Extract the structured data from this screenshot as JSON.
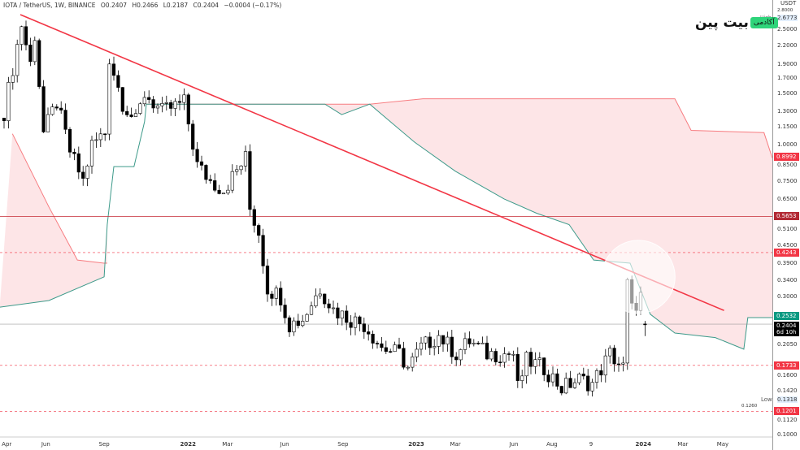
{
  "header": {
    "symbol": "IOTA / TetherUS, 1W, BINANCE",
    "open": "O0.2407",
    "high": "H0.2466",
    "low": "L0.2187",
    "close": "C0.2404",
    "change": "−0.0004 (−0.17%)"
  },
  "logo": {
    "brand": "بیت پین",
    "tag": "آکادمی"
  },
  "axis": {
    "unit": "USDT",
    "y_ticks": [
      "2.5000",
      "2.2000",
      "1.9000",
      "1.7000",
      "1.5000",
      "1.3000",
      "1.1500",
      "1.0000",
      "0.8500",
      "0.7500",
      "0.6500",
      "0.5100",
      "0.4500",
      "0.3900",
      "0.3400",
      "0.3000",
      "0.2050",
      "0.1600",
      "0.1420",
      "0.1120",
      "0.1000"
    ],
    "x_ticks": [
      {
        "label": "Apr",
        "week": 0.6,
        "bold": false
      },
      {
        "label": "Jun",
        "week": 9.5,
        "bold": false
      },
      {
        "label": "Sep",
        "week": 22.8,
        "bold": false
      },
      {
        "label": "2022",
        "week": 41.9,
        "bold": true
      },
      {
        "label": "Mar",
        "week": 50.9,
        "bold": false
      },
      {
        "label": "Jun",
        "week": 63.9,
        "bold": false
      },
      {
        "label": "Sep",
        "week": 77.2,
        "bold": false
      },
      {
        "label": "2023",
        "week": 93.9,
        "bold": true
      },
      {
        "label": "Mar",
        "week": 102.8,
        "bold": false
      },
      {
        "label": "Jun",
        "week": 116.1,
        "bold": false
      },
      {
        "label": "Aug",
        "week": 124.8,
        "bold": false
      },
      {
        "label": "9",
        "week": 133.7,
        "bold": false
      },
      {
        "label": "2024",
        "week": 145.6,
        "bold": true
      },
      {
        "label": "Mar",
        "week": 154.6,
        "bold": false
      },
      {
        "label": "May",
        "week": 163.7,
        "bold": false
      }
    ],
    "high_label": "High",
    "high_value": "2.6773",
    "top_value": "2.8000",
    "low_label": "Low",
    "low_value": "0.1318",
    "low_sub": "0.1260"
  },
  "badges": {
    "cloud_upper": {
      "value": "0.8992",
      "color": "#f23645"
    },
    "level_1": {
      "value": "0.5653",
      "color": "#b22833"
    },
    "level_2": {
      "value": "0.4243",
      "color": "#f23645"
    },
    "cloud_lower": {
      "value": "0.2532",
      "color": "#089981"
    },
    "last_price": {
      "value": "0.2404",
      "countdown": "6d 10h",
      "color": "#000000"
    },
    "level_3": {
      "value": "0.1733",
      "color": "#f23645"
    },
    "level_4": {
      "value": "0.1201",
      "color": "#f23645"
    }
  },
  "chart_data": {
    "type": "candlestick",
    "title": "IOTA / TetherUS, 1W, BINANCE",
    "scale": "log",
    "ylim": [
      0.1,
      2.8
    ],
    "close_keypoints": [
      [
        0,
        1.3
      ],
      [
        3,
        2.2
      ],
      [
        4,
        2.6
      ],
      [
        6,
        1.9
      ],
      [
        7,
        2.4
      ],
      [
        9,
        1.1
      ],
      [
        12,
        1.4
      ],
      [
        15,
        0.95
      ],
      [
        18,
        0.75
      ],
      [
        20,
        1.0
      ],
      [
        23,
        1.1
      ],
      [
        24,
        2.0
      ],
      [
        27,
        1.4
      ],
      [
        30,
        1.2
      ],
      [
        32,
        1.5
      ],
      [
        36,
        1.3
      ],
      [
        41,
        1.4
      ],
      [
        44,
        0.85
      ],
      [
        47,
        0.75
      ],
      [
        50,
        0.7
      ],
      [
        55,
        0.9
      ],
      [
        56,
        0.6
      ],
      [
        58,
        0.5
      ],
      [
        60,
        0.32
      ],
      [
        63,
        0.3
      ],
      [
        65,
        0.24
      ],
      [
        68,
        0.25
      ],
      [
        72,
        0.32
      ],
      [
        75,
        0.27
      ],
      [
        79,
        0.25
      ],
      [
        82,
        0.24
      ],
      [
        86,
        0.2
      ],
      [
        90,
        0.19
      ],
      [
        92,
        0.17
      ],
      [
        95,
        0.2
      ],
      [
        99,
        0.22
      ],
      [
        103,
        0.19
      ],
      [
        106,
        0.21
      ],
      [
        110,
        0.19
      ],
      [
        116,
        0.19
      ],
      [
        117,
        0.145
      ],
      [
        119,
        0.18
      ],
      [
        123,
        0.17
      ],
      [
        127,
        0.145
      ],
      [
        131,
        0.155
      ],
      [
        134,
        0.15
      ],
      [
        138,
        0.19
      ],
      [
        141,
        0.17
      ],
      [
        142,
        0.33
      ],
      [
        143,
        0.27
      ],
      [
        145,
        0.3
      ],
      [
        146,
        0.2404
      ]
    ],
    "last_candle": {
      "open": 0.2407,
      "high": 0.2466,
      "low": 0.2187,
      "close": 0.2404
    },
    "cloud_early": {
      "upper": [
        [
          1.9,
          1.09
        ],
        [
          10.2,
          0.61
        ],
        [
          16.7,
          0.4
        ],
        [
          22.8,
          0.39
        ],
        [
          23.5,
          0.39
        ]
      ],
      "lower": [
        [
          -1,
          0.275
        ],
        [
          10.2,
          0.29
        ],
        [
          22.8,
          0.35
        ],
        [
          23.5,
          0.53
        ]
      ]
    },
    "cloud_lower_line": [
      [
        23.5,
        0.53
      ],
      [
        25,
        0.84
      ],
      [
        29.6,
        0.84
      ],
      [
        32,
        1.2
      ],
      [
        32.4,
        1.38
      ],
      [
        73.1,
        1.38
      ],
      [
        76.9,
        1.27
      ],
      [
        83.3,
        1.38
      ],
      [
        86.1,
        1.27
      ],
      [
        93.5,
        1.02
      ],
      [
        102.8,
        0.81
      ],
      [
        113.9,
        0.65
      ],
      [
        121.3,
        0.58
      ],
      [
        128.7,
        0.53
      ],
      [
        134.3,
        0.4
      ],
      [
        142.6,
        0.39
      ],
      [
        147.2,
        0.26
      ],
      [
        152.8,
        0.224
      ],
      [
        162,
        0.216
      ],
      [
        168.5,
        0.197
      ],
      [
        169.4,
        0.2532
      ],
      [
        175,
        0.2532
      ]
    ],
    "cloud_upper_line": [
      [
        32.4,
        1.38
      ],
      [
        83.3,
        1.38
      ],
      [
        95.4,
        1.44
      ],
      [
        152.8,
        1.44
      ],
      [
        156.5,
        1.12
      ],
      [
        173.1,
        1.1
      ],
      [
        175,
        0.8992
      ]
    ],
    "trendline": [
      [
        3.7,
        2.81
      ],
      [
        164,
        0.268
      ]
    ],
    "horizontal_levels": [
      {
        "price": 0.5653,
        "style": "solid"
      },
      {
        "price": 0.4243,
        "style": "dashed"
      },
      {
        "price": 0.1733,
        "style": "dashed"
      },
      {
        "price": 0.1201,
        "style": "dashed"
      }
    ],
    "highlight_circle": {
      "week": 144.5,
      "price": 0.35
    }
  }
}
